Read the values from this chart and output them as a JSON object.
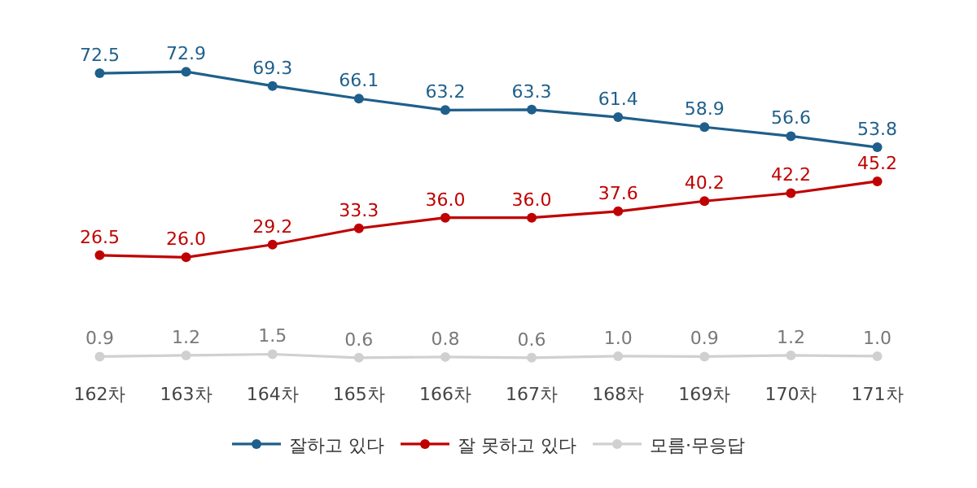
{
  "chart_data": {
    "type": "line",
    "categories": [
      "162차",
      "163차",
      "164차",
      "165차",
      "166차",
      "167차",
      "168차",
      "169차",
      "170차",
      "171차"
    ],
    "series": [
      {
        "name": "잘하고 있다",
        "color": "#1f5f8b",
        "values": [
          72.5,
          72.9,
          69.3,
          66.1,
          63.2,
          63.3,
          61.4,
          58.9,
          56.6,
          53.8
        ],
        "value_labels": [
          "72.5",
          "72.9",
          "69.3",
          "66.1",
          "63.2",
          "63.3",
          "61.4",
          "58.9",
          "56.6",
          "53.8"
        ]
      },
      {
        "name": "잘 못하고 있다",
        "color": "#c00000",
        "values": [
          26.5,
          26.0,
          29.2,
          33.3,
          36.0,
          36.0,
          37.6,
          40.2,
          42.2,
          45.2
        ],
        "value_labels": [
          "26.5",
          "26.0",
          "29.2",
          "33.3",
          "36.0",
          "36.0",
          "37.6",
          "40.2",
          "42.2",
          "45.2"
        ]
      },
      {
        "name": "모름·무응답",
        "color": "#d0d0d0",
        "values": [
          0.9,
          1.2,
          1.5,
          0.6,
          0.8,
          0.6,
          1.0,
          0.9,
          1.2,
          1.0
        ],
        "value_labels": [
          "0.9",
          "1.2",
          "1.5",
          "0.6",
          "0.8",
          "0.6",
          "1.0",
          "0.9",
          "1.2",
          "1.0"
        ]
      }
    ],
    "marker": "circle",
    "line_style": "solid",
    "legend": "bottom",
    "tick_labels": "x"
  }
}
